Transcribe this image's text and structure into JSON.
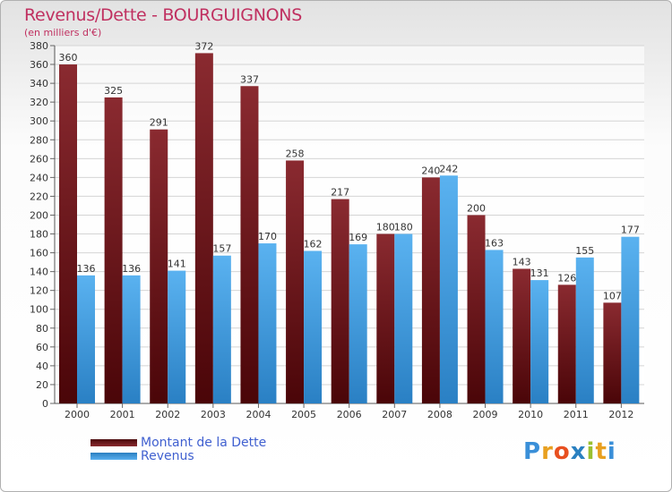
{
  "title": "Revenus/Dette - BOURGUIGNONS",
  "subtitle": "(en milliers d'€)",
  "logo": {
    "letters": [
      "P",
      "r",
      "o",
      "x",
      "i",
      "t",
      "i"
    ],
    "colors": [
      "#3a8fd8",
      "#e8a020",
      "#e85020",
      "#2a80c0",
      "#9ac030",
      "#e8a020",
      "#3a8fd8"
    ]
  },
  "chart_data": {
    "type": "bar",
    "title": "Revenus/Dette - BOURGUIGNONS",
    "ylabel": "(en milliers d'€)",
    "ylim": [
      0,
      380
    ],
    "yticks": [
      0,
      20,
      40,
      60,
      80,
      100,
      120,
      140,
      160,
      180,
      200,
      220,
      240,
      260,
      280,
      300,
      320,
      340,
      360,
      380
    ],
    "grid": true,
    "categories": [
      "2000",
      "2001",
      "2002",
      "2003",
      "2004",
      "2005",
      "2006",
      "2007",
      "2008",
      "2009",
      "2010",
      "2011",
      "2012"
    ],
    "series": [
      {
        "name": "Montant de la Dette",
        "color": "#7a1e22",
        "values": [
          360,
          325,
          291,
          372,
          337,
          258,
          217,
          180,
          240,
          200,
          143,
          126,
          107
        ]
      },
      {
        "name": "Revenus",
        "color": "#3a9ee0",
        "values": [
          136,
          136,
          141,
          157,
          170,
          162,
          169,
          180,
          242,
          163,
          131,
          155,
          177
        ]
      }
    ],
    "legend": "bottom-left"
  }
}
